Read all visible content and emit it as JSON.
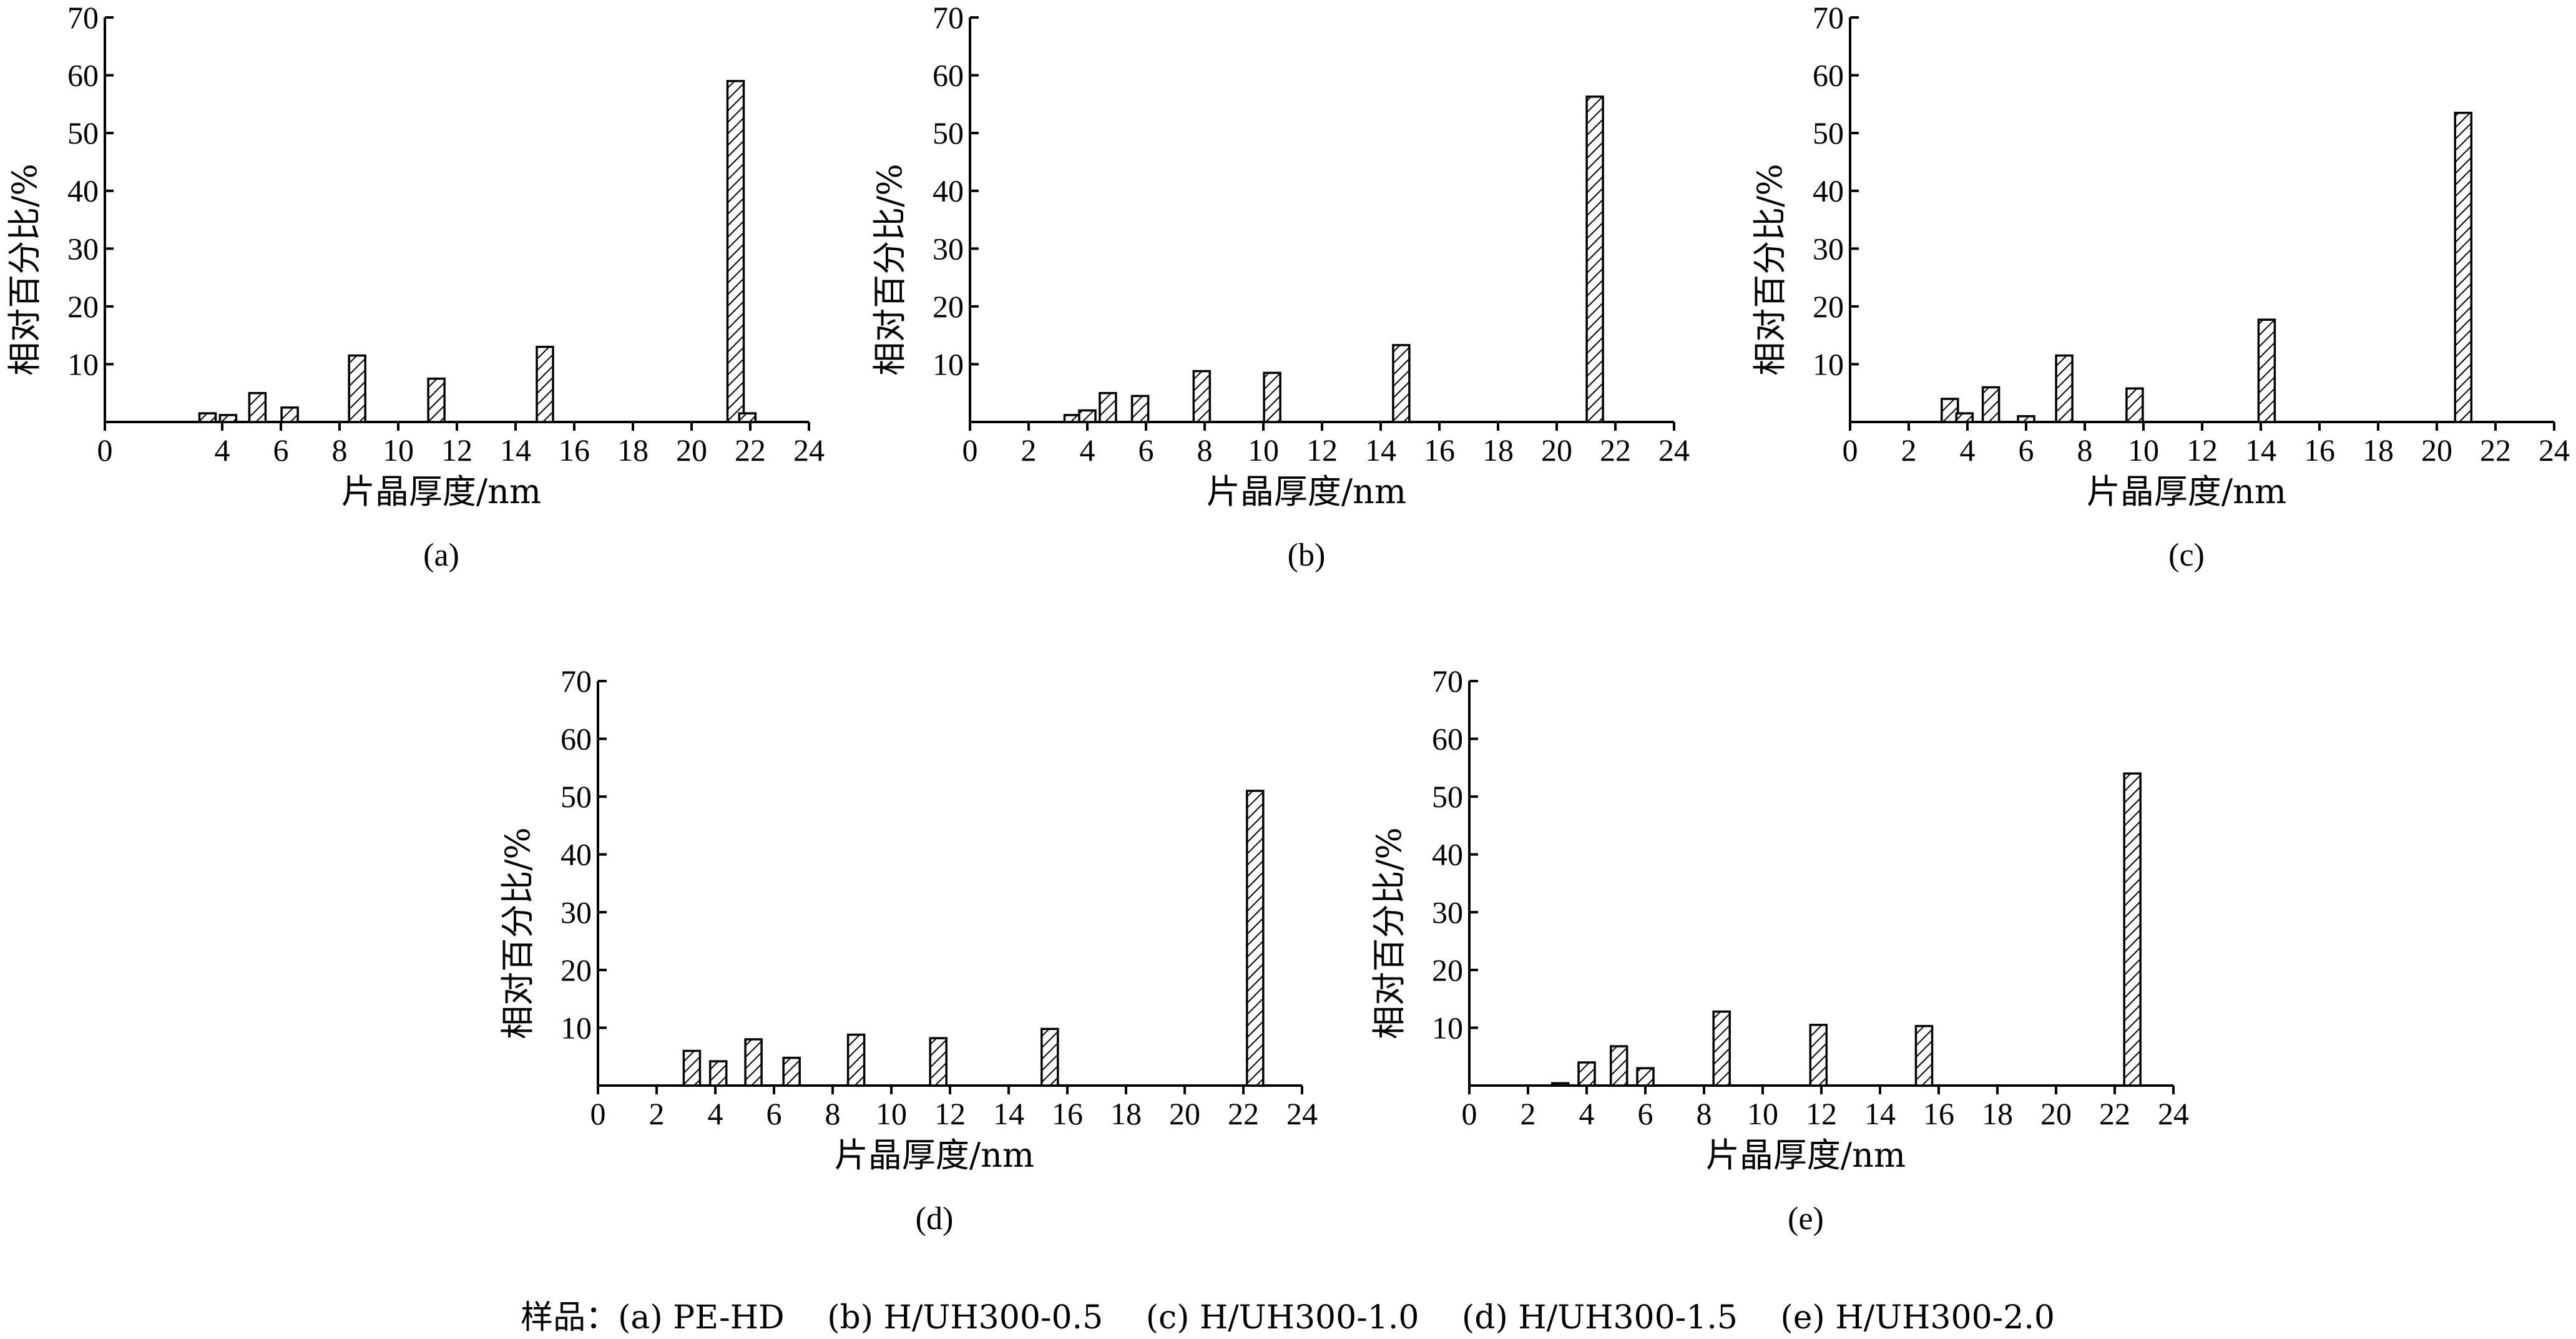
{
  "chart_data": [
    {
      "type": "bar",
      "panel_label": "(a)",
      "xlabel": "片晶厚度/nm",
      "ylabel": "相对百分比/%",
      "xlim": [
        0,
        24
      ],
      "ylim": [
        0,
        70
      ],
      "x_ticks": [
        "0",
        "4",
        "6",
        "8",
        "10",
        "12",
        "14",
        "16",
        "18",
        "20",
        "22",
        "24"
      ],
      "y_ticks": [
        "10",
        "20",
        "30",
        "40",
        "50",
        "60",
        "70"
      ],
      "x": [
        3.5,
        4.2,
        5.2,
        6.3,
        8.6,
        11.3,
        15.0,
        21.5,
        21.9
      ],
      "values": [
        1.5,
        1.2,
        5.0,
        2.5,
        11.5,
        7.5,
        13.0,
        59.0,
        1.5
      ]
    },
    {
      "type": "bar",
      "panel_label": "(b)",
      "xlabel": "片晶厚度/nm",
      "ylabel": "相对百分比/%",
      "xlim": [
        0,
        24
      ],
      "ylim": [
        0,
        70
      ],
      "x_ticks": [
        "0",
        "2",
        "4",
        "6",
        "8",
        "10",
        "12",
        "14",
        "16",
        "18",
        "20",
        "22",
        "24"
      ],
      "y_ticks": [
        "10",
        "20",
        "30",
        "40",
        "50",
        "60",
        "70"
      ],
      "x": [
        3.5,
        4.0,
        4.7,
        5.8,
        7.9,
        10.3,
        14.7,
        21.3
      ],
      "values": [
        1.2,
        2.0,
        5.0,
        4.5,
        8.8,
        8.5,
        13.3,
        56.3
      ]
    },
    {
      "type": "bar",
      "panel_label": "(c)",
      "xlabel": "片晶厚度/nm",
      "ylabel": "相对百分比/%",
      "xlim": [
        0,
        24
      ],
      "ylim": [
        0,
        70
      ],
      "x_ticks": [
        "0",
        "2",
        "4",
        "6",
        "8",
        "10",
        "12",
        "14",
        "16",
        "18",
        "20",
        "22",
        "24"
      ],
      "y_ticks": [
        "10",
        "20",
        "30",
        "40",
        "50",
        "60",
        "70"
      ],
      "x": [
        3.4,
        3.9,
        4.8,
        6.0,
        7.3,
        9.7,
        14.2,
        20.9
      ],
      "values": [
        4.0,
        1.5,
        6.0,
        1.0,
        11.5,
        5.8,
        17.7,
        53.5
      ]
    },
    {
      "type": "bar",
      "panel_label": "(d)",
      "xlabel": "片晶厚度/nm",
      "ylabel": "相对百分比/%",
      "xlim": [
        0,
        24
      ],
      "ylim": [
        0,
        70
      ],
      "x_ticks": [
        "0",
        "2",
        "4",
        "6",
        "8",
        "10",
        "12",
        "14",
        "16",
        "18",
        "20",
        "22",
        "24"
      ],
      "y_ticks": [
        "10",
        "20",
        "30",
        "40",
        "50",
        "60",
        "70"
      ],
      "x": [
        3.2,
        4.1,
        5.3,
        6.6,
        8.8,
        11.6,
        15.4,
        22.4
      ],
      "values": [
        6.0,
        4.2,
        8.0,
        4.8,
        8.8,
        8.2,
        9.8,
        51.0
      ]
    },
    {
      "type": "bar",
      "panel_label": "(e)",
      "xlabel": "片晶厚度/nm",
      "ylabel": "相对百分比/%",
      "xlim": [
        0,
        24
      ],
      "ylim": [
        0,
        70
      ],
      "x_ticks": [
        "0",
        "2",
        "4",
        "6",
        "8",
        "10",
        "12",
        "14",
        "16",
        "18",
        "20",
        "22",
        "24"
      ],
      "y_ticks": [
        "10",
        "20",
        "30",
        "40",
        "50",
        "60",
        "70"
      ],
      "x": [
        3.1,
        4.0,
        5.1,
        6.0,
        8.6,
        11.9,
        15.5,
        22.6
      ],
      "values": [
        0.4,
        4.0,
        6.8,
        3.0,
        12.8,
        10.5,
        10.3,
        54.0
      ]
    }
  ],
  "caption": "样品：(a) PE-HD　 (b) H/UH300-0.5　 (c) H/UH300-1.0　 (d) H/UH300-1.5　 (e) H/UH300-2.0"
}
